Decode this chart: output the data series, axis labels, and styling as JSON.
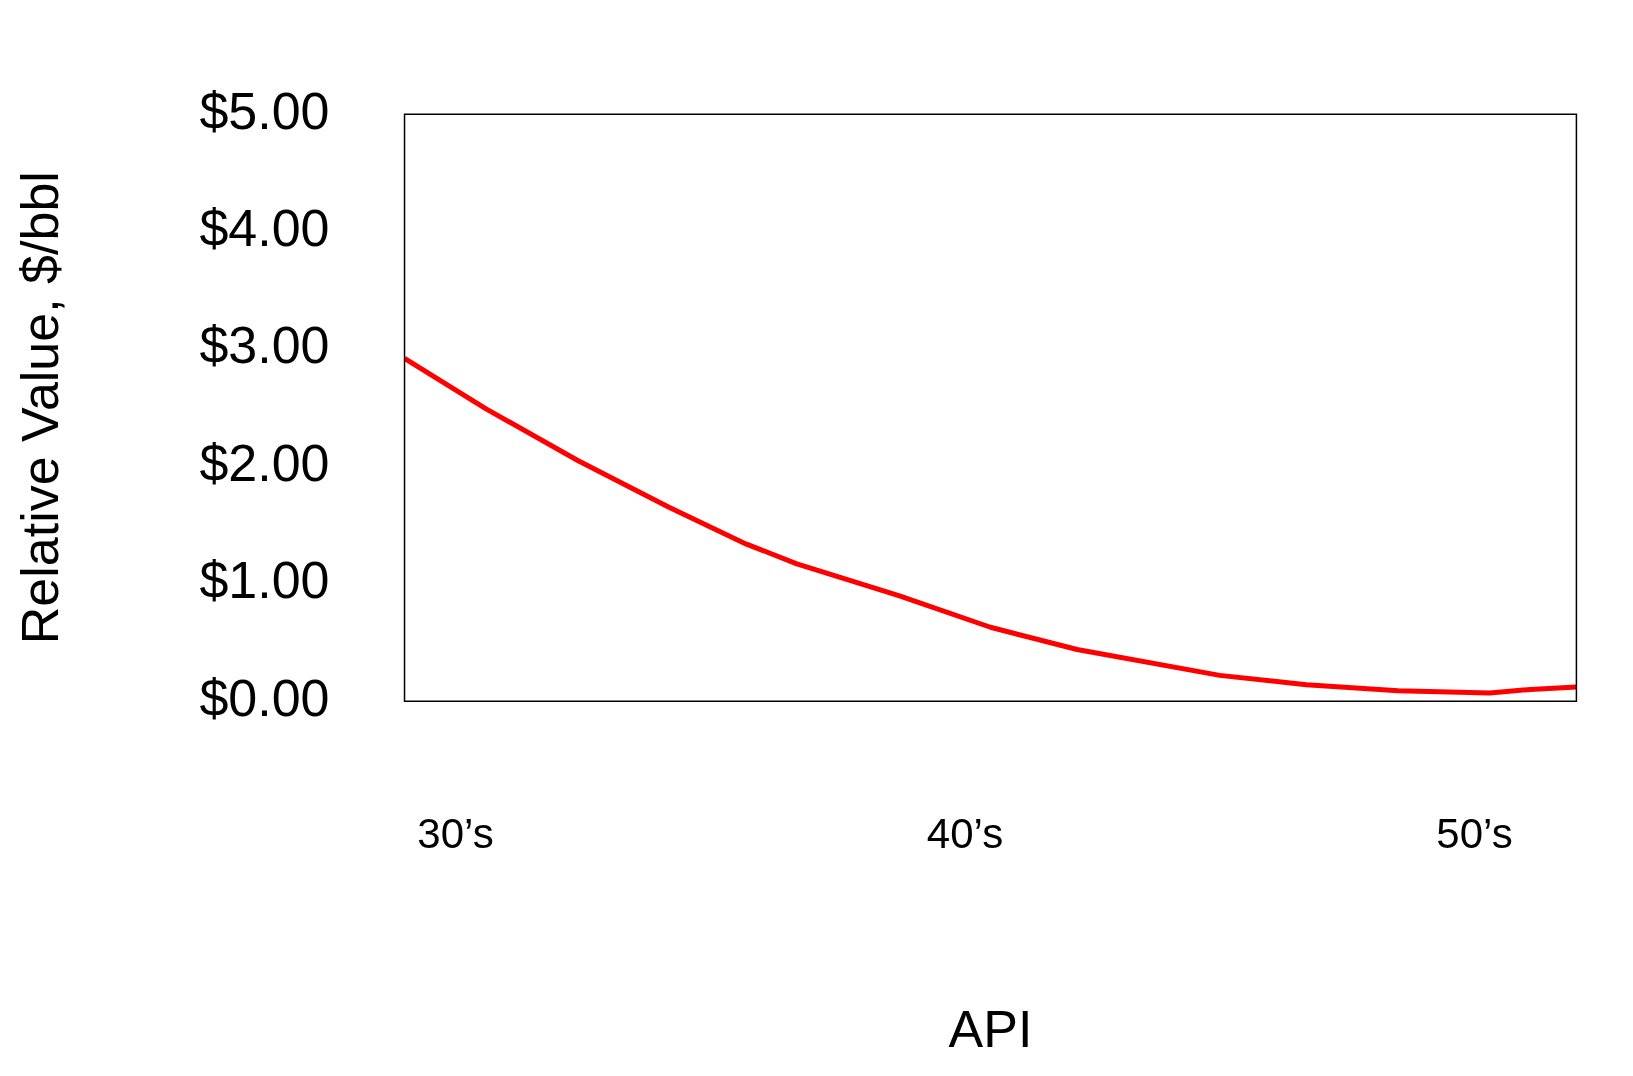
{
  "chart_data": {
    "type": "line",
    "xlabel": "API",
    "ylabel": "Relative Value, $/bbl",
    "x": [
      29,
      30.6,
      32.4,
      34.2,
      35.7,
      36.7,
      38.7,
      40.5,
      42.2,
      45.0,
      46.7,
      48.5,
      50.3,
      51.1,
      52
    ],
    "series": [
      {
        "color": "#ff0000",
        "values": [
          2.92,
          2.49,
          2.05,
          1.65,
          1.34,
          1.17,
          0.9,
          0.63,
          0.44,
          0.22,
          0.14,
          0.09,
          0.07,
          0.1,
          0.12
        ]
      }
    ],
    "xlim": [
      29,
      52
    ],
    "xticks": [
      {
        "value": 30,
        "label": "30’s"
      },
      {
        "value": 40,
        "label": "40’s"
      },
      {
        "value": 50,
        "label": "50’s"
      }
    ],
    "ylim": [
      0,
      5
    ],
    "yticks": [
      {
        "value": 0,
        "label": "$0.00"
      },
      {
        "value": 1,
        "label": "$1.00"
      },
      {
        "value": 2,
        "label": "$2.00"
      },
      {
        "value": 3,
        "label": "$3.00"
      },
      {
        "value": 4,
        "label": "$4.00"
      },
      {
        "value": 5,
        "label": "$5.00"
      }
    ],
    "grid": false,
    "legend": false,
    "marker": "none",
    "line_style": "solid"
  }
}
